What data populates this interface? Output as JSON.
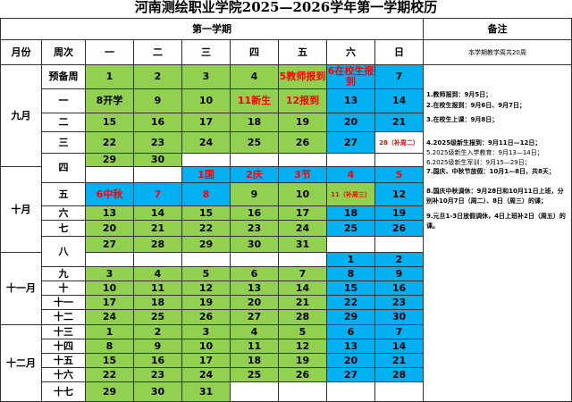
{
  "title": "河南测绘职业学院2025—2026学年第一学期校历",
  "term": "第一学期",
  "remark_header": "备注",
  "headers": [
    "月份",
    "周次",
    "一",
    "二",
    "三",
    "四",
    "五",
    "六",
    "日"
  ],
  "week_count_note": "本学期教学周共20周",
  "weekday_fill": "#92d050",
  "weekend_fill": "#00b0f0",
  "months": [
    "九月",
    "十月",
    "十一月",
    "十二月"
  ],
  "weeks": [
    {
      "label": "预备周",
      "rows": [
        [
          1,
          2,
          3,
          4,
          {
            "text": "5教师报到",
            "color": "#ff0000"
          },
          {
            "text": "6在校生报到",
            "color": "#ff0000"
          },
          7
        ]
      ]
    },
    {
      "label": "一",
      "rows": [
        [
          "8开学",
          9,
          10,
          {
            "text": "11新生",
            "color": "#ff0000"
          },
          {
            "text": "12报到",
            "color": "#ff0000"
          },
          13,
          14
        ]
      ]
    },
    {
      "label": "二",
      "rows": [
        [
          15,
          16,
          17,
          18,
          19,
          20,
          21
        ]
      ]
    },
    {
      "label": "三",
      "rows": [
        [
          22,
          23,
          24,
          25,
          26,
          27,
          {
            "text": "28（补周二）",
            "color": "#ff0000",
            "fill": "#ffffff"
          }
        ]
      ]
    },
    {
      "label": "四",
      "rows": [
        [
          29,
          30,
          null,
          null,
          null,
          null,
          null
        ],
        [
          null,
          null,
          {
            "text": "1国",
            "color": "#ff0000",
            "fill": "#00b0f0"
          },
          {
            "text": "2庆",
            "color": "#ff0000",
            "fill": "#00b0f0"
          },
          {
            "text": "3节",
            "color": "#ff0000",
            "fill": "#00b0f0"
          },
          {
            "text": 4,
            "color": "#ff0000",
            "fill": "#00b0f0"
          },
          {
            "text": 5,
            "color": "#ff0000",
            "fill": "#00b0f0"
          }
        ]
      ]
    },
    {
      "label": "五",
      "rows": [
        [
          {
            "text": "6中秋",
            "color": "#ff0000",
            "fill": "#00b0f0"
          },
          {
            "text": 7,
            "color": "#ff0000",
            "fill": "#00b0f0"
          },
          {
            "text": 8,
            "color": "#ff0000",
            "fill": "#00b0f0"
          },
          9,
          10,
          {
            "text": "11（补周三）",
            "color": "#ff0000",
            "fill": "#92d050"
          },
          12
        ]
      ]
    },
    {
      "label": "六",
      "rows": [
        [
          13,
          14,
          15,
          16,
          17,
          18,
          19
        ]
      ]
    },
    {
      "label": "七",
      "rows": [
        [
          20,
          21,
          22,
          23,
          24,
          25,
          26
        ]
      ]
    },
    {
      "label": "八",
      "rows": [
        [
          27,
          28,
          29,
          30,
          31,
          null,
          null
        ],
        [
          null,
          null,
          null,
          null,
          null,
          1,
          2
        ]
      ]
    },
    {
      "label": "九",
      "rows": [
        [
          3,
          4,
          5,
          6,
          7,
          8,
          9
        ]
      ]
    },
    {
      "label": "十",
      "rows": [
        [
          10,
          11,
          12,
          13,
          14,
          15,
          16
        ]
      ]
    },
    {
      "label": "十一",
      "rows": [
        [
          17,
          18,
          19,
          20,
          21,
          22,
          23
        ]
      ]
    },
    {
      "label": "十二",
      "rows": [
        [
          24,
          25,
          26,
          27,
          28,
          29,
          30
        ]
      ]
    },
    {
      "label": "十三",
      "rows": [
        [
          1,
          2,
          3,
          4,
          5,
          6,
          7
        ]
      ]
    },
    {
      "label": "十四",
      "rows": [
        [
          8,
          9,
          10,
          11,
          12,
          13,
          14
        ]
      ]
    },
    {
      "label": "十五",
      "rows": [
        [
          15,
          16,
          17,
          18,
          19,
          20,
          21
        ]
      ]
    },
    {
      "label": "十六",
      "rows": [
        [
          22,
          23,
          24,
          25,
          26,
          27,
          28
        ]
      ]
    },
    {
      "label": "十七",
      "rows": [
        [
          29,
          30,
          31,
          null,
          null,
          null,
          null
        ]
      ]
    }
  ],
  "notes": [
    "1.教师报到：9月5日；",
    "2.在校生报到：9月6日、9月7日；",
    "3.在校生上课：9月8日；",
    "4.2025级新生报到：9月11日—12日；",
    "5.2025级新生入学教育：9月13—14日；",
    "6.2025级新生军训：9月15—29日；",
    "7.国庆、中秋节放假：10月1—8日，共8天；",
    "8.国庆中秋调休：9月28日和10月11日上班，分别补10月7日（周二）、8日（周三）的课；",
    "9.元旦1-3日放假调休，4日上班补2日（周五）的课。"
  ]
}
